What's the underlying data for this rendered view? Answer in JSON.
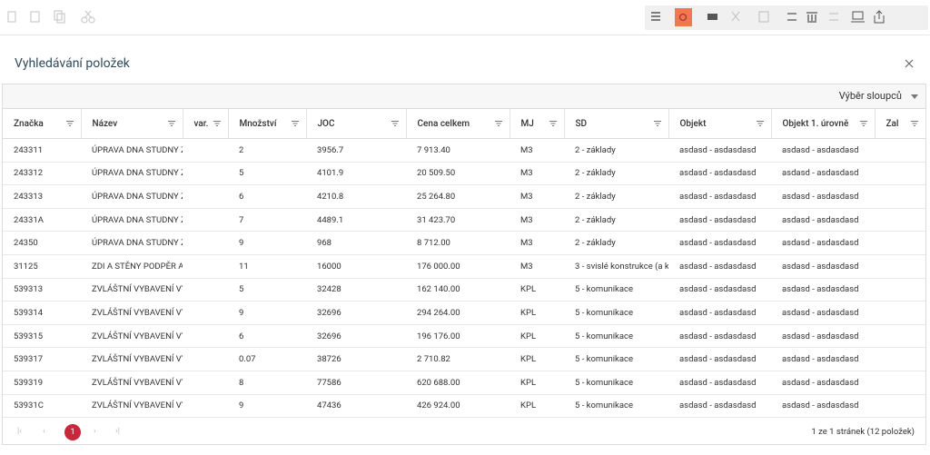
{
  "dialog": {
    "title": "Vyhledávání položek",
    "column_picker": "Výběr sloupců"
  },
  "table": {
    "columns": [
      "Značka",
      "Název",
      "var.",
      "Množství",
      "JOC",
      "Cena celkem",
      "MJ",
      "SD",
      "Objekt",
      "Objekt 1. úrovně",
      "Zal"
    ],
    "rows": [
      [
        "243311",
        "ÚPRAVA DNA STUDNY Z",
        null,
        "2",
        "3956.7",
        "7 913.40",
        "M3",
        "2 - základy",
        "asdasd - asdasdasd",
        "asdasd - asdasdasd",
        null
      ],
      [
        "243312",
        "ÚPRAVA DNA STUDNY Z",
        null,
        "5",
        "4101.9",
        "20 509.50",
        "M3",
        "2 - základy",
        "asdasd - asdasdasd",
        "asdasd - asdasdasd",
        null
      ],
      [
        "243313",
        "ÚPRAVA DNA STUDNY Z",
        null,
        "6",
        "4210.8",
        "25 264.80",
        "M3",
        "2 - základy",
        "asdasd - asdasdasd",
        "asdasd - asdasdasd",
        null
      ],
      [
        "24331A",
        "ÚPRAVA DNA STUDNY Z",
        null,
        "7",
        "4489.1",
        "31 423.70",
        "M3",
        "2 - základy",
        "asdasd - asdasdasd",
        "asdasd - asdasdasd",
        null
      ],
      [
        "24350",
        "ÚPRAVA DNA STUDNY Z",
        null,
        "9",
        "968",
        "8 712.00",
        "M3",
        "2 - základy",
        "asdasd - asdasdasd",
        "asdasd - asdasdasd",
        null
      ],
      [
        "31125",
        "ZDI A STĚNY PODPĚR A",
        null,
        "11",
        "16000",
        "176 000.00",
        "M3",
        "3 - svislé konstrukce (a k",
        "asdasd - asdasdasd",
        "asdasd - asdasdasd",
        null
      ],
      [
        "539313",
        "ZVLÁŠTNÍ VYBAVENÍ VÝ",
        null,
        "5",
        "32428",
        "162 140.00",
        "KPL",
        "5 - komunikace",
        "asdasd - asdasdasd",
        "asdasd - asdasdasd",
        null
      ],
      [
        "539314",
        "ZVLÁŠTNÍ VYBAVENÍ VÝ",
        null,
        "9",
        "32696",
        "294 264.00",
        "KPL",
        "5 - komunikace",
        "asdasd - asdasdasd",
        "asdasd - asdasdasd",
        null
      ],
      [
        "539315",
        "ZVLÁŠTNÍ VYBAVENÍ VÝ",
        null,
        "6",
        "32696",
        "196 176.00",
        "KPL",
        "5 - komunikace",
        "asdasd - asdasdasd",
        "asdasd - asdasdasd",
        null
      ],
      [
        "539317",
        "ZVLÁŠTNÍ VYBAVENÍ VÝ",
        null,
        "0.07",
        "38726",
        "2 710.82",
        "KPL",
        "5 - komunikace",
        "asdasd - asdasdasd",
        "asdasd - asdasdasd",
        null
      ],
      [
        "539319",
        "ZVLÁŠTNÍ VYBAVENÍ VÝ",
        null,
        "8",
        "77586",
        "620 688.00",
        "KPL",
        "5 - komunikace",
        "asdasd - asdasdasd",
        "asdasd - asdasdasd",
        null
      ],
      [
        "53931C",
        "ZVLÁŠTNÍ VYBAVENÍ VÝ",
        null,
        "9",
        "47436",
        "426 924.00",
        "KPL",
        "5 - komunikace",
        "asdasd - asdasdasd",
        "asdasd - asdasdasd",
        null
      ]
    ]
  },
  "pagination": {
    "current": "1",
    "summary": "1 ze 1 stránek (12 položek)"
  }
}
